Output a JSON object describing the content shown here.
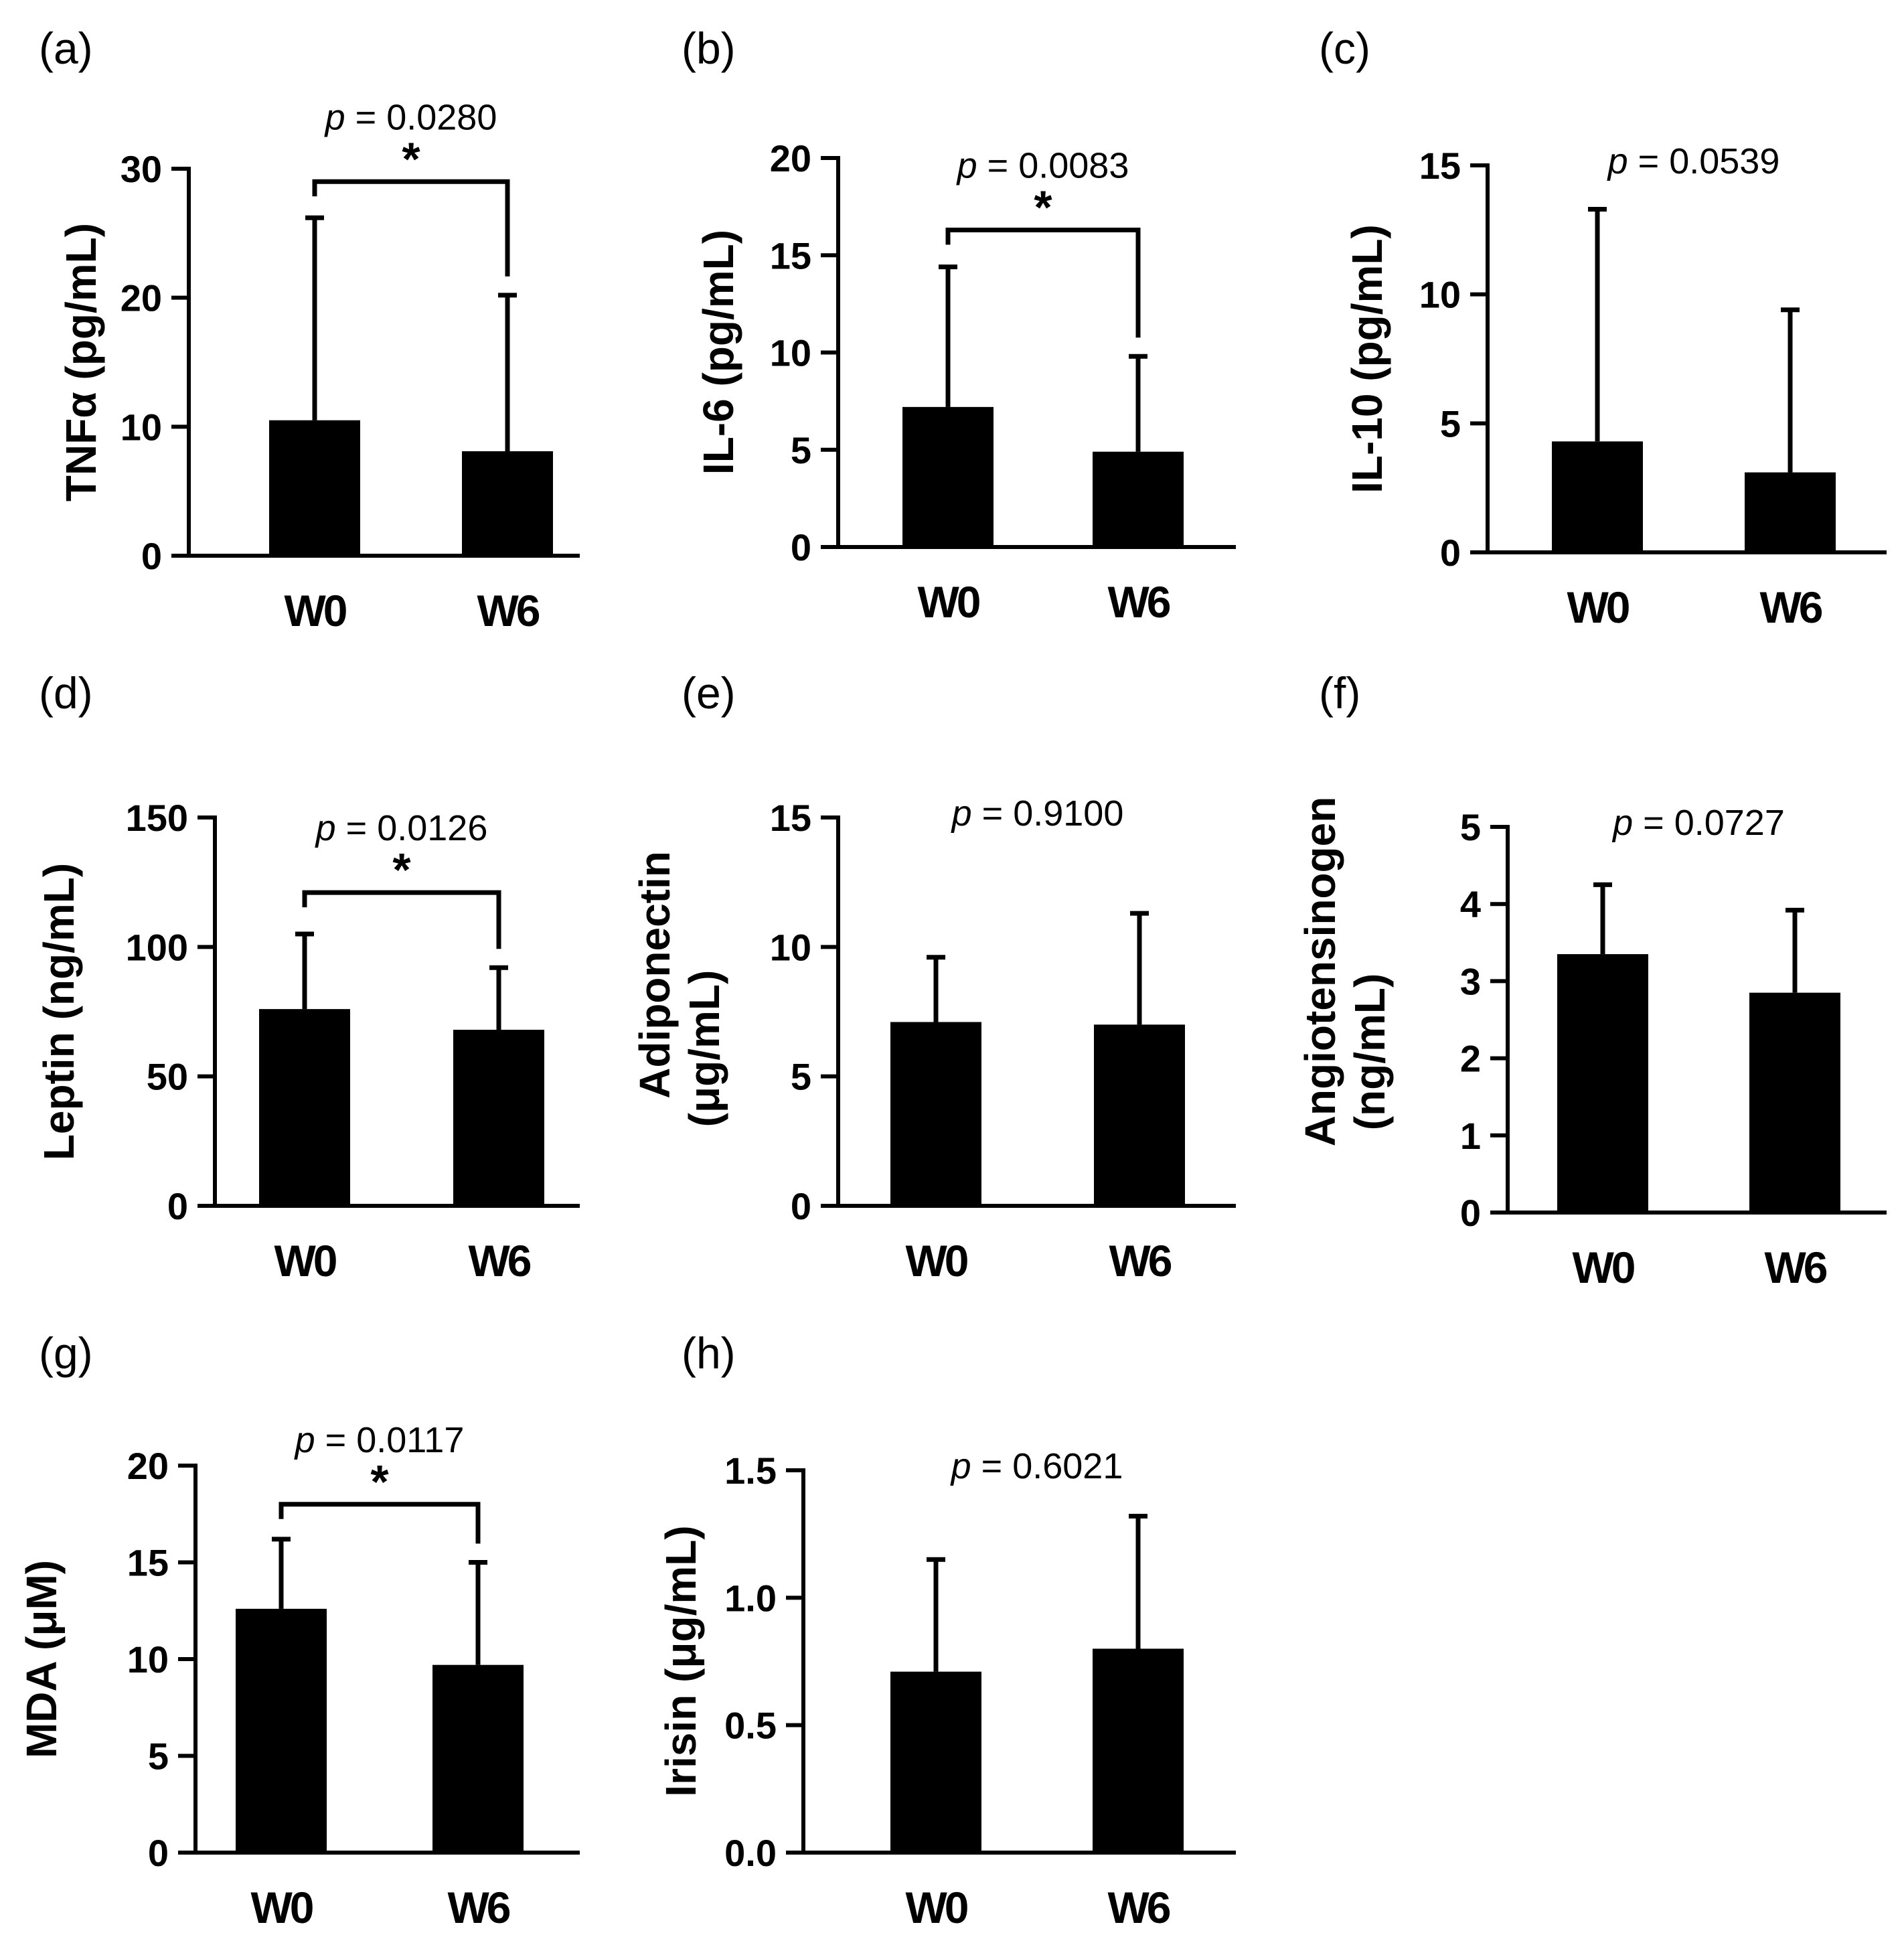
{
  "figure": {
    "background": "#ffffff",
    "bar_color": "#000000"
  },
  "chart_data": [
    {
      "panel": "(a)",
      "type": "bar",
      "categories": [
        "W0",
        "W6"
      ],
      "values": [
        10.5,
        8.1
      ],
      "error_upper": [
        26.2,
        20.2
      ],
      "ylim": [
        0,
        30
      ],
      "yticks": [
        "0",
        "10",
        "20",
        "30"
      ],
      "ytick_values": [
        0,
        10,
        20,
        30
      ],
      "ylabel": [
        "TNFα (pg/mL)"
      ],
      "p_prefix": "p",
      "p_text": " = 0.0280",
      "significant": true,
      "sig_mark": "*",
      "bracket_y": 29.0
    },
    {
      "panel": "(b)",
      "type": "bar",
      "categories": [
        "W0",
        "W6"
      ],
      "values": [
        7.2,
        4.9
      ],
      "error_upper": [
        14.4,
        9.8
      ],
      "ylim": [
        0,
        20
      ],
      "yticks": [
        "0",
        "5",
        "10",
        "15",
        "20"
      ],
      "ytick_values": [
        0,
        5,
        10,
        15,
        20
      ],
      "ylabel": [
        "IL-6 (pg/mL)"
      ],
      "p_prefix": "p",
      "p_text": " = 0.0083",
      "significant": true,
      "sig_mark": "*",
      "bracket_y": 16.3
    },
    {
      "panel": "(c)",
      "type": "bar",
      "categories": [
        "W0",
        "W6"
      ],
      "values": [
        4.3,
        3.1
      ],
      "error_upper": [
        13.3,
        9.4
      ],
      "ylim": [
        0,
        15
      ],
      "yticks": [
        "0",
        "5",
        "10",
        "15"
      ],
      "ytick_values": [
        0,
        5,
        10,
        15
      ],
      "ylabel": [
        "IL-10 (pg/mL)"
      ],
      "p_prefix": "p",
      "p_text": " = 0.0539",
      "significant": false
    },
    {
      "panel": "(d)",
      "type": "bar",
      "categories": [
        "W0",
        "W6"
      ],
      "values": [
        76,
        68
      ],
      "error_upper": [
        105,
        92
      ],
      "ylim": [
        0,
        150
      ],
      "yticks": [
        "0",
        "50",
        "100",
        "150"
      ],
      "ytick_values": [
        0,
        50,
        100,
        150
      ],
      "ylabel": [
        "Leptin (ng/mL)"
      ],
      "p_prefix": "p",
      "p_text": " = 0.0126",
      "significant": true,
      "sig_mark": "*",
      "bracket_y": 121
    },
    {
      "panel": "(e)",
      "type": "bar",
      "categories": [
        "W0",
        "W6"
      ],
      "values": [
        7.1,
        7.0
      ],
      "error_upper": [
        9.6,
        11.3
      ],
      "ylim": [
        0,
        15
      ],
      "yticks": [
        "0",
        "5",
        "10",
        "15"
      ],
      "ytick_values": [
        0,
        5,
        10,
        15
      ],
      "ylabel": [
        "Adiponectin",
        "(μg/mL)"
      ],
      "p_prefix": "p",
      "p_text": " = 0.9100",
      "significant": false
    },
    {
      "panel": "(f)",
      "type": "bar",
      "categories": [
        "W0",
        "W6"
      ],
      "values": [
        3.35,
        2.85
      ],
      "error_upper": [
        4.25,
        3.92
      ],
      "ylim": [
        0,
        5
      ],
      "yticks": [
        "0",
        "1",
        "2",
        "3",
        "4",
        "5"
      ],
      "ytick_values": [
        0,
        1,
        2,
        3,
        4,
        5
      ],
      "ylabel": [
        "Angiotensinogen",
        "(ng/mL)"
      ],
      "p_prefix": "p",
      "p_text": " = 0.0727",
      "significant": false
    },
    {
      "panel": "(g)",
      "type": "bar",
      "categories": [
        "W0",
        "W6"
      ],
      "values": [
        12.6,
        9.7
      ],
      "error_upper": [
        16.2,
        15.0
      ],
      "ylim": [
        0,
        20
      ],
      "yticks": [
        "0",
        "5",
        "10",
        "15",
        "20"
      ],
      "ytick_values": [
        0,
        5,
        10,
        15,
        20
      ],
      "ylabel": [
        "MDA (μM)"
      ],
      "p_prefix": "p",
      "p_text": " = 0.0117",
      "significant": true,
      "sig_mark": "*",
      "bracket_y": 18.0
    },
    {
      "panel": "(h)",
      "type": "bar",
      "categories": [
        "W0",
        "W6"
      ],
      "values": [
        0.71,
        0.8
      ],
      "error_upper": [
        1.15,
        1.32
      ],
      "ylim": [
        0,
        1.5
      ],
      "yticks": [
        "0.0",
        "0.5",
        "1.0",
        "1.5"
      ],
      "ytick_values": [
        0,
        0.5,
        1.0,
        1.5
      ],
      "ylabel": [
        "Irisin (μg/mL)"
      ],
      "p_prefix": "p",
      "p_text": " = 0.6021",
      "significant": false
    }
  ]
}
